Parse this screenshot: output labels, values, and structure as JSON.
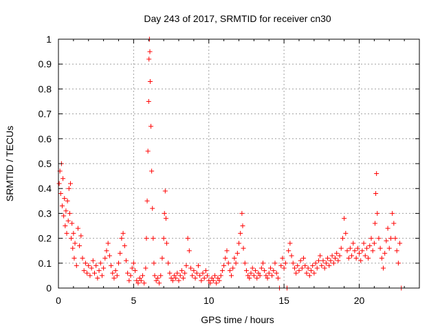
{
  "chart_data": {
    "type": "scatter",
    "title": "Day 243 of 2017, SRMTID for receiver cn30",
    "xlabel": "GPS time / hours",
    "ylabel": "SRMTID / TECUs",
    "xlim": [
      0,
      24
    ],
    "ylim": [
      0,
      1
    ],
    "xticks": [
      0,
      5,
      10,
      15,
      20
    ],
    "xtick_labels": [
      "0",
      "5",
      "10",
      "15",
      "20"
    ],
    "yticks": [
      0,
      0.1,
      0.2,
      0.3,
      0.4,
      0.5,
      0.6,
      0.7,
      0.8,
      0.9,
      1
    ],
    "ytick_labels": [
      "0",
      "0.1",
      "0.2",
      "0.3",
      "0.4",
      "0.5",
      "0.6",
      "0.7",
      "0.8",
      "0.9",
      "1"
    ],
    "grid": true,
    "marker": "+",
    "color": "#ff0000",
    "series": [
      {
        "name": "SRMTID",
        "points": [
          [
            0.05,
            0.42
          ],
          [
            0.1,
            0.47
          ],
          [
            0.15,
            0.38
          ],
          [
            0.2,
            0.5
          ],
          [
            0.25,
            0.33
          ],
          [
            0.3,
            0.44
          ],
          [
            0.35,
            0.29
          ],
          [
            0.4,
            0.36
          ],
          [
            0.45,
            0.25
          ],
          [
            0.5,
            0.31
          ],
          [
            0.55,
            0.22
          ],
          [
            0.6,
            0.35
          ],
          [
            0.65,
            0.27
          ],
          [
            0.7,
            0.4
          ],
          [
            0.75,
            0.3
          ],
          [
            0.8,
            0.42
          ],
          [
            0.85,
            0.2
          ],
          [
            0.9,
            0.26
          ],
          [
            0.95,
            0.16
          ],
          [
            1.0,
            0.22
          ],
          [
            1.05,
            0.12
          ],
          [
            1.1,
            0.18
          ],
          [
            1.2,
            0.09
          ],
          [
            1.3,
            0.24
          ],
          [
            1.4,
            0.17
          ],
          [
            1.5,
            0.21
          ],
          [
            1.6,
            0.12
          ],
          [
            1.7,
            0.07
          ],
          [
            1.8,
            0.1
          ],
          [
            1.9,
            0.06
          ],
          [
            2.0,
            0.09
          ],
          [
            2.1,
            0.05
          ],
          [
            2.2,
            0.08
          ],
          [
            2.3,
            0.11
          ],
          [
            2.4,
            0.06
          ],
          [
            2.5,
            0.09
          ],
          [
            2.6,
            0.04
          ],
          [
            2.7,
            0.07
          ],
          [
            2.8,
            0.1
          ],
          [
            2.9,
            0.05
          ],
          [
            3.0,
            0.08
          ],
          [
            3.1,
            0.12
          ],
          [
            3.2,
            0.15
          ],
          [
            3.3,
            0.18
          ],
          [
            3.4,
            0.13
          ],
          [
            3.5,
            0.09
          ],
          [
            3.6,
            0.06
          ],
          [
            3.7,
            0.04
          ],
          [
            3.8,
            0.07
          ],
          [
            3.9,
            0.05
          ],
          [
            4.0,
            0.1
          ],
          [
            4.1,
            0.14
          ],
          [
            4.2,
            0.2
          ],
          [
            4.3,
            0.22
          ],
          [
            4.4,
            0.17
          ],
          [
            4.5,
            0.11
          ],
          [
            4.6,
            0.06
          ],
          [
            4.7,
            0.03
          ],
          [
            4.8,
            0.05
          ],
          [
            4.9,
            0.08
          ],
          [
            5.0,
            0.1
          ],
          [
            5.1,
            0.07
          ],
          [
            5.2,
            0.03
          ],
          [
            5.3,
            0.02
          ],
          [
            5.4,
            0.04
          ],
          [
            5.5,
            0.03
          ],
          [
            5.6,
            0.05
          ],
          [
            5.7,
            0.02
          ],
          [
            5.8,
            0.08
          ],
          [
            5.85,
            0.2
          ],
          [
            5.9,
            0.35
          ],
          [
            5.95,
            0.55
          ],
          [
            6.0,
            0.75
          ],
          [
            6.02,
            0.92
          ],
          [
            6.05,
            1.0
          ],
          [
            6.08,
            0.95
          ],
          [
            6.1,
            0.83
          ],
          [
            6.15,
            0.65
          ],
          [
            6.2,
            0.47
          ],
          [
            6.25,
            0.32
          ],
          [
            6.3,
            0.2
          ],
          [
            6.35,
            0.1
          ],
          [
            6.4,
            0.05
          ],
          [
            6.5,
            0.03
          ],
          [
            6.6,
            0.04
          ],
          [
            6.7,
            0.02
          ],
          [
            6.8,
            0.05
          ],
          [
            6.9,
            0.12
          ],
          [
            7.0,
            0.2
          ],
          [
            7.05,
            0.3
          ],
          [
            7.1,
            0.39
          ],
          [
            7.15,
            0.28
          ],
          [
            7.2,
            0.18
          ],
          [
            7.3,
            0.1
          ],
          [
            7.4,
            0.06
          ],
          [
            7.5,
            0.04
          ],
          [
            7.6,
            0.03
          ],
          [
            7.7,
            0.05
          ],
          [
            7.8,
            0.04
          ],
          [
            7.9,
            0.06
          ],
          [
            8.0,
            0.03
          ],
          [
            8.1,
            0.05
          ],
          [
            8.2,
            0.07
          ],
          [
            8.3,
            0.04
          ],
          [
            8.4,
            0.06
          ],
          [
            8.5,
            0.09
          ],
          [
            8.6,
            0.2
          ],
          [
            8.7,
            0.15
          ],
          [
            8.8,
            0.08
          ],
          [
            8.9,
            0.05
          ],
          [
            9.0,
            0.07
          ],
          [
            9.1,
            0.04
          ],
          [
            9.2,
            0.06
          ],
          [
            9.3,
            0.09
          ],
          [
            9.4,
            0.05
          ],
          [
            9.5,
            0.03
          ],
          [
            9.6,
            0.06
          ],
          [
            9.7,
            0.04
          ],
          [
            9.8,
            0.07
          ],
          [
            9.9,
            0.05
          ],
          [
            10.0,
            0.03
          ],
          [
            10.1,
            0.02
          ],
          [
            10.2,
            0.04
          ],
          [
            10.3,
            0.03
          ],
          [
            10.4,
            0.05
          ],
          [
            10.5,
            0.02
          ],
          [
            10.6,
            0.04
          ],
          [
            10.7,
            0.03
          ],
          [
            10.8,
            0.05
          ],
          [
            10.9,
            0.07
          ],
          [
            11.0,
            0.09
          ],
          [
            11.1,
            0.12
          ],
          [
            11.2,
            0.15
          ],
          [
            11.3,
            0.1
          ],
          [
            11.4,
            0.07
          ],
          [
            11.5,
            0.05
          ],
          [
            11.6,
            0.08
          ],
          [
            11.7,
            0.12
          ],
          [
            11.8,
            0.1
          ],
          [
            11.9,
            0.14
          ],
          [
            12.0,
            0.18
          ],
          [
            12.1,
            0.22
          ],
          [
            12.2,
            0.3
          ],
          [
            12.25,
            0.25
          ],
          [
            12.3,
            0.16
          ],
          [
            12.4,
            0.1
          ],
          [
            12.5,
            0.07
          ],
          [
            12.6,
            0.05
          ],
          [
            12.7,
            0.04
          ],
          [
            12.8,
            0.06
          ],
          [
            12.9,
            0.08
          ],
          [
            13.0,
            0.05
          ],
          [
            13.1,
            0.07
          ],
          [
            13.2,
            0.04
          ],
          [
            13.3,
            0.06
          ],
          [
            13.4,
            0.05
          ],
          [
            13.5,
            0.08
          ],
          [
            13.6,
            0.1
          ],
          [
            13.7,
            0.07
          ],
          [
            13.8,
            0.05
          ],
          [
            13.9,
            0.04
          ],
          [
            14.0,
            0.06
          ],
          [
            14.1,
            0.08
          ],
          [
            14.2,
            0.05
          ],
          [
            14.3,
            0.07
          ],
          [
            14.4,
            0.1
          ],
          [
            14.5,
            0.06
          ],
          [
            14.6,
            0.04
          ],
          [
            14.7,
            0.0
          ],
          [
            14.8,
            0.09
          ],
          [
            14.9,
            0.12
          ],
          [
            15.0,
            0.08
          ],
          [
            15.1,
            0.1
          ],
          [
            15.2,
            0.0
          ],
          [
            15.3,
            0.15
          ],
          [
            15.4,
            0.18
          ],
          [
            15.5,
            0.13
          ],
          [
            15.6,
            0.1
          ],
          [
            15.7,
            0.08
          ],
          [
            15.8,
            0.06
          ],
          [
            15.9,
            0.09
          ],
          [
            16.0,
            0.07
          ],
          [
            16.1,
            0.11
          ],
          [
            16.2,
            0.08
          ],
          [
            16.3,
            0.12
          ],
          [
            16.4,
            0.09
          ],
          [
            16.5,
            0.06
          ],
          [
            16.6,
            0.08
          ],
          [
            16.7,
            0.05
          ],
          [
            16.8,
            0.07
          ],
          [
            16.9,
            0.09
          ],
          [
            17.0,
            0.06
          ],
          [
            17.1,
            0.1
          ],
          [
            17.2,
            0.08
          ],
          [
            17.3,
            0.11
          ],
          [
            17.4,
            0.13
          ],
          [
            17.5,
            0.09
          ],
          [
            17.6,
            0.11
          ],
          [
            17.7,
            0.08
          ],
          [
            17.8,
            0.1
          ],
          [
            17.9,
            0.12
          ],
          [
            18.0,
            0.09
          ],
          [
            18.1,
            0.11
          ],
          [
            18.2,
            0.13
          ],
          [
            18.3,
            0.1
          ],
          [
            18.4,
            0.12
          ],
          [
            18.5,
            0.14
          ],
          [
            18.6,
            0.11
          ],
          [
            18.7,
            0.13
          ],
          [
            18.8,
            0.16
          ],
          [
            18.9,
            0.2
          ],
          [
            19.0,
            0.28
          ],
          [
            19.1,
            0.22
          ],
          [
            19.2,
            0.15
          ],
          [
            19.3,
            0.12
          ],
          [
            19.4,
            0.16
          ],
          [
            19.5,
            0.13
          ],
          [
            19.6,
            0.18
          ],
          [
            19.7,
            0.15
          ],
          [
            19.8,
            0.12
          ],
          [
            19.9,
            0.16
          ],
          [
            20.0,
            0.14
          ],
          [
            20.1,
            0.11
          ],
          [
            20.2,
            0.15
          ],
          [
            20.3,
            0.18
          ],
          [
            20.4,
            0.13
          ],
          [
            20.5,
            0.16
          ],
          [
            20.6,
            0.12
          ],
          [
            20.7,
            0.17
          ],
          [
            20.8,
            0.2
          ],
          [
            20.9,
            0.15
          ],
          [
            21.0,
            0.18
          ],
          [
            21.05,
            0.26
          ],
          [
            21.1,
            0.38
          ],
          [
            21.15,
            0.46
          ],
          [
            21.2,
            0.3
          ],
          [
            21.3,
            0.2
          ],
          [
            21.4,
            0.16
          ],
          [
            21.5,
            0.12
          ],
          [
            21.6,
            0.08
          ],
          [
            21.7,
            0.14
          ],
          [
            21.8,
            0.19
          ],
          [
            21.9,
            0.24
          ],
          [
            22.0,
            0.16
          ],
          [
            22.1,
            0.2
          ],
          [
            22.2,
            0.3
          ],
          [
            22.3,
            0.26
          ],
          [
            22.4,
            0.2
          ],
          [
            22.5,
            0.15
          ],
          [
            22.6,
            0.1
          ],
          [
            22.7,
            0.18
          ],
          [
            22.8,
            0.0
          ]
        ]
      }
    ]
  }
}
